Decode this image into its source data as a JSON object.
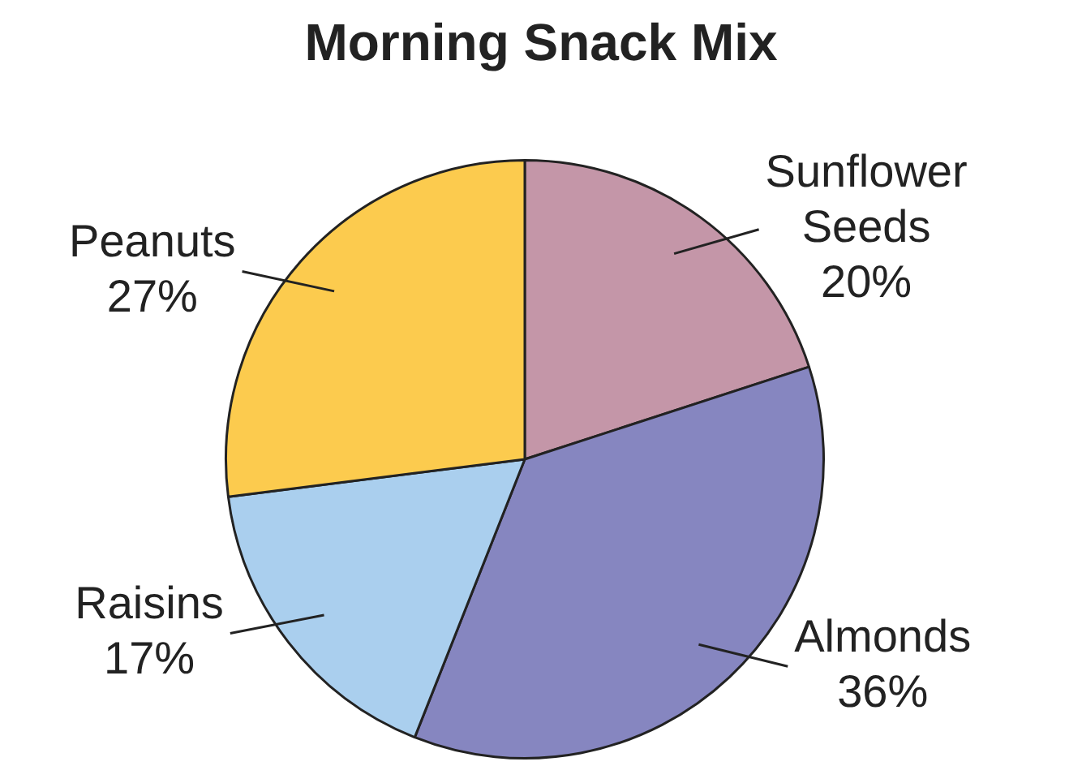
{
  "chart_data": {
    "type": "pie",
    "title": "Morning Snack Mix",
    "categories": [
      "Sunflower Seeds",
      "Almonds",
      "Raisins",
      "Peanuts"
    ],
    "values": [
      20,
      36,
      17,
      27
    ],
    "value_labels": [
      "20%",
      "36%",
      "17%",
      "27%"
    ],
    "colors": [
      "#c496a8",
      "#8686c0",
      "#aacfee",
      "#fccb4e"
    ],
    "legend": false
  }
}
